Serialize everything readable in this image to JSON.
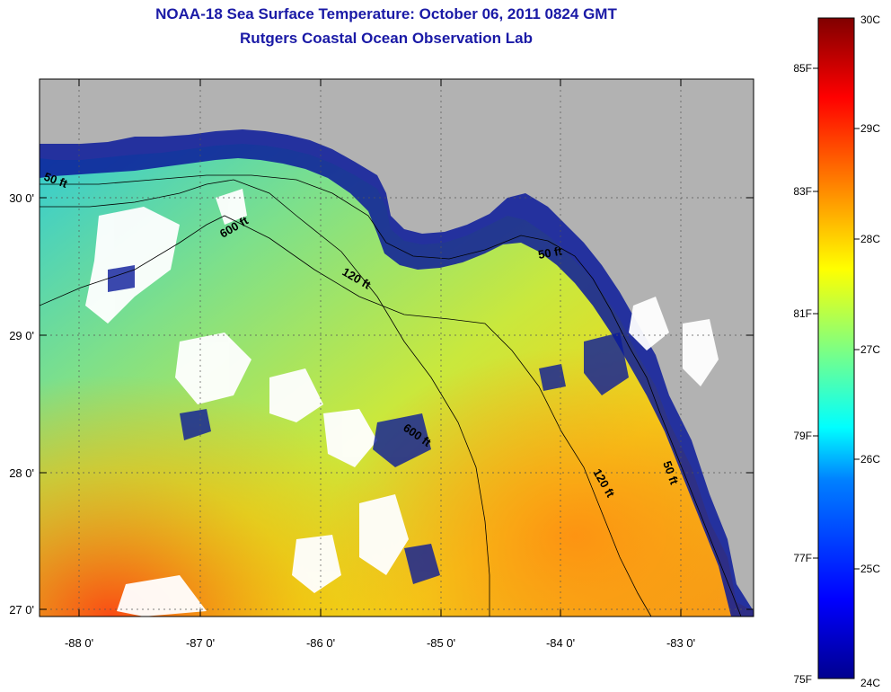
{
  "title": {
    "line1": "NOAA-18 Sea Surface Temperature:  October 06, 2011 0824 GMT",
    "line2": "Rutgers Coastal Ocean Observation Lab"
  },
  "map": {
    "longitude_labels": [
      "-88 0'",
      "-87 0'",
      "-86 0'",
      "-85 0'",
      "-84 0'",
      "-83 0'"
    ],
    "latitude_labels": [
      "30 0'",
      "29 0'",
      "28 0'",
      "27 0'"
    ],
    "depth_labels": [
      "50 ft",
      "600 ft",
      "120 ft",
      "50 ft",
      "600 ft",
      "120 ft",
      "50 ft"
    ],
    "colors": {
      "land": "#b2b2b2",
      "cloud": "#ffffff",
      "coastal_cold": "#0a1a9a"
    }
  },
  "colorbar": {
    "fahrenheit_labels": [
      "85F",
      "83F",
      "81F",
      "79F",
      "77F",
      "75F"
    ],
    "celsius_labels": [
      "30C",
      "29C",
      "28C",
      "27C",
      "26C",
      "25C",
      "24C"
    ],
    "range_c": [
      24,
      30
    ],
    "colormap": "jet"
  }
}
